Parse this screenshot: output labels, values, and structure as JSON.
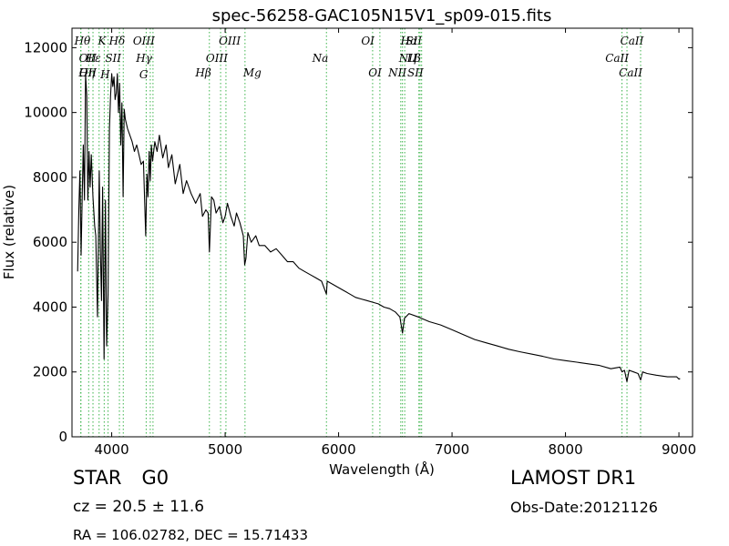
{
  "chart_data": {
    "type": "line",
    "title": "spec-56258-GAC105N15V1_sp09-015.fits",
    "xlabel": "Wavelength (Å)",
    "ylabel": "Flux (relative)",
    "xlim": [
      3650,
      9120
    ],
    "ylim": [
      0,
      12600
    ],
    "xticks": [
      4000,
      5000,
      6000,
      7000,
      8000,
      9000
    ],
    "yticks": [
      0,
      2000,
      4000,
      6000,
      8000,
      10000,
      12000
    ],
    "grid": false,
    "series": [
      {
        "color": "#000000",
        "x": [
          3700,
          3710,
          3720,
          3730,
          3740,
          3750,
          3760,
          3770,
          3780,
          3790,
          3800,
          3810,
          3820,
          3835,
          3850,
          3860,
          3875,
          3890,
          3900,
          3910,
          3920,
          3933,
          3945,
          3955,
          3968,
          3980,
          3990,
          4000,
          4010,
          4020,
          4030,
          4040,
          4050,
          4060,
          4070,
          4080,
          4090,
          4101,
          4110,
          4120,
          4140,
          4160,
          4180,
          4200,
          4220,
          4240,
          4260,
          4280,
          4300,
          4310,
          4320,
          4330,
          4340,
          4350,
          4360,
          4380,
          4400,
          4420,
          4450,
          4480,
          4500,
          4530,
          4560,
          4600,
          4630,
          4660,
          4700,
          4740,
          4780,
          4800,
          4830,
          4850,
          4861,
          4870,
          4880,
          4900,
          4920,
          4950,
          4980,
          5000,
          5020,
          5050,
          5080,
          5100,
          5130,
          5160,
          5172,
          5183,
          5200,
          5230,
          5270,
          5300,
          5350,
          5400,
          5450,
          5500,
          5550,
          5600,
          5650,
          5700,
          5750,
          5800,
          5850,
          5893,
          5900,
          5950,
          6000,
          6050,
          6100,
          6150,
          6200,
          6250,
          6300,
          6350,
          6400,
          6450,
          6500,
          6540,
          6563,
          6580,
          6620,
          6700,
          6800,
          6900,
          7000,
          7100,
          7200,
          7300,
          7400,
          7500,
          7600,
          7700,
          7800,
          7900,
          8000,
          8100,
          8200,
          8300,
          8400,
          8480,
          8498,
          8520,
          8542,
          8560,
          8600,
          8640,
          8662,
          8680,
          8720,
          8800,
          8900,
          8980,
          9000,
          9010
        ],
        "y": [
          5100,
          7000,
          8200,
          5600,
          7400,
          9000,
          7300,
          11200,
          10500,
          7300,
          8800,
          7700,
          8700,
          7400,
          6500,
          6200,
          3700,
          8200,
          5800,
          4200,
          7700,
          2400,
          7300,
          2800,
          4400,
          9500,
          10500,
          11200,
          10800,
          11100,
          10400,
          10600,
          11200,
          10000,
          10900,
          9000,
          10300,
          7400,
          10100,
          9800,
          9500,
          9300,
          9100,
          8800,
          9000,
          8700,
          8400,
          8500,
          6200,
          8100,
          7400,
          8800,
          7900,
          9000,
          8500,
          9100,
          8800,
          9300,
          8600,
          9000,
          8300,
          8700,
          7800,
          8400,
          7500,
          7900,
          7500,
          7200,
          7500,
          6800,
          7000,
          6900,
          5700,
          6500,
          7400,
          7300,
          6900,
          7100,
          6600,
          6800,
          7200,
          6800,
          6500,
          6900,
          6600,
          6200,
          5300,
          5500,
          6300,
          6000,
          6200,
          5900,
          5900,
          5700,
          5800,
          5600,
          5400,
          5400,
          5200,
          5100,
          5000,
          4900,
          4800,
          4400,
          4800,
          4700,
          4600,
          4500,
          4400,
          4300,
          4250,
          4200,
          4150,
          4100,
          4000,
          3950,
          3850,
          3700,
          3200,
          3650,
          3800,
          3700,
          3550,
          3450,
          3300,
          3150,
          3000,
          2900,
          2800,
          2700,
          2620,
          2550,
          2480,
          2400,
          2350,
          2300,
          2250,
          2200,
          2100,
          2150,
          2000,
          2050,
          1700,
          2050,
          2000,
          1950,
          1750,
          2000,
          1950,
          1900,
          1850,
          1850,
          1780,
          1800
        ]
      }
    ],
    "lines": [
      {
        "label": "Hθ",
        "x": 3797,
        "row": 0,
        "anchor": "end"
      },
      {
        "label": "K",
        "x": 3934,
        "row": 0,
        "anchor": "end"
      },
      {
        "label": "Hδ",
        "x": 4102,
        "row": 0,
        "anchor": "end"
      },
      {
        "label": "OIII",
        "x": 4364,
        "row": 0,
        "anchor": "end"
      },
      {
        "label": "OIII",
        "x": 4960,
        "row": 0,
        "anchor": "start"
      },
      {
        "label": "OI",
        "x": 6300,
        "row": 0,
        "anchor": "end"
      },
      {
        "label": "Hα",
        "x": 6563,
        "row": 0,
        "anchor": "start"
      },
      {
        "label": "SII",
        "x": 6718,
        "row": 0,
        "anchor": "end"
      },
      {
        "label": "CaII",
        "x": 8498,
        "row": 0,
        "anchor": "start"
      },
      {
        "label": "OII",
        "x": 3727,
        "row": 1,
        "anchor": "start"
      },
      {
        "label": "Hε",
        "x": 3889,
        "row": 1,
        "anchor": "end"
      },
      {
        "label": "SII",
        "x": 4068,
        "row": 1,
        "anchor": "end"
      },
      {
        "label": "Hγ",
        "x": 4340,
        "row": 1,
        "anchor": "end"
      },
      {
        "label": "OIII",
        "x": 5007,
        "row": 1,
        "anchor": "end"
      },
      {
        "label": "Na",
        "x": 5893,
        "row": 1,
        "anchor": "end"
      },
      {
        "label": "NII",
        "x": 6548,
        "row": 1,
        "anchor": "start"
      },
      {
        "label": "Lβ",
        "x": 6708,
        "row": 1,
        "anchor": "end"
      },
      {
        "label": "CaII",
        "x": 8542,
        "row": 1,
        "anchor": "end"
      },
      {
        "label": "OII",
        "x": 3729,
        "row": 2,
        "anchor": "start"
      },
      {
        "label": "Hη",
        "x": 3835,
        "row": 2,
        "anchor": "end"
      },
      {
        "label": "Hβ",
        "x": 4861,
        "row": 2,
        "anchor": "end"
      },
      {
        "label": "Mg",
        "x": 5175,
        "row": 2,
        "anchor": "start"
      },
      {
        "label": "OI",
        "x": 6364,
        "row": 2,
        "anchor": "end"
      },
      {
        "label": "NII",
        "x": 6583,
        "row": 2,
        "anchor": "end"
      },
      {
        "label": "SII",
        "x": 6732,
        "row": 2,
        "anchor": "end"
      },
      {
        "label": "CaII",
        "x": 8662,
        "row": 2,
        "anchor": "end"
      },
      {
        "label": "H",
        "x": 3968,
        "row": 3,
        "anchor": "end"
      },
      {
        "label": "G",
        "x": 4304,
        "row": 3,
        "anchor": "end"
      }
    ],
    "line_color": "#3cb44b"
  },
  "info": {
    "class": "STAR",
    "subclass": "G0",
    "redshift": "cz = 20.5  ± 11.6",
    "coords": "RA = 106.02782, DEC = 15.71433",
    "survey": "LAMOST DR1",
    "obs_date": "Obs-Date:20121126"
  }
}
